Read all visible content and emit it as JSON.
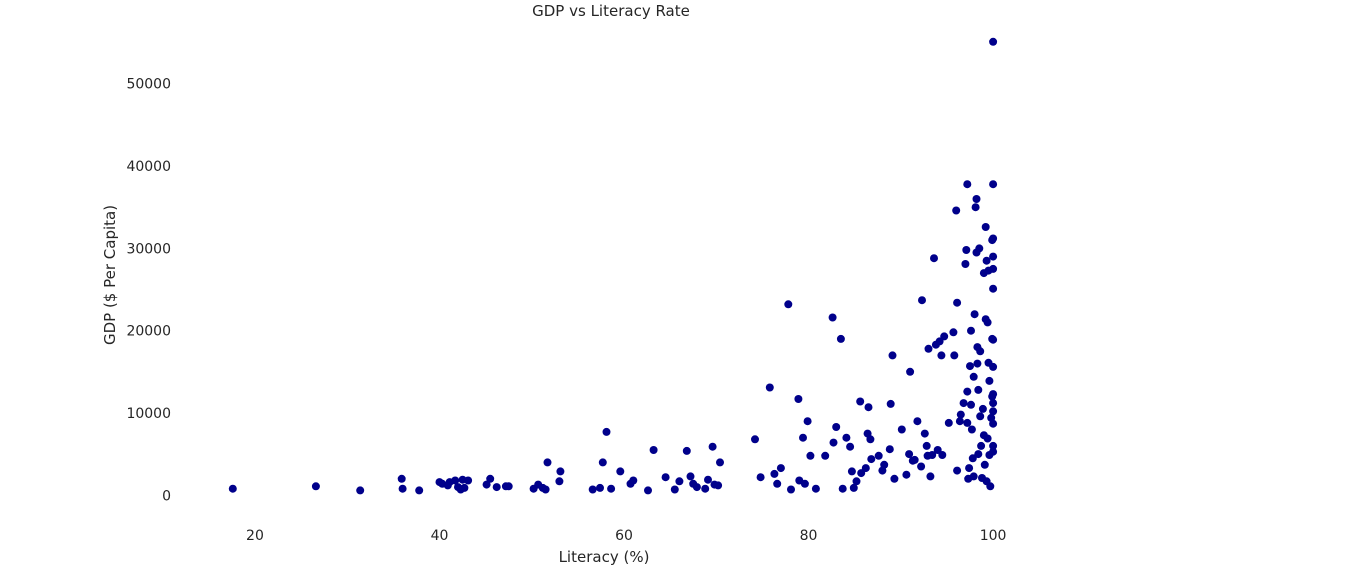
{
  "chart_data": {
    "type": "scatter",
    "title": "GDP vs Literacy Rate",
    "xlabel": "Literacy (%)",
    "ylabel": "GDP ($ Per Capita)",
    "xlim": [
      13.5,
      104
    ],
    "ylim": [
      -3000,
      57500
    ],
    "xticks": [
      20,
      40,
      60,
      80,
      100
    ],
    "yticks": [
      0,
      10000,
      20000,
      30000,
      40000,
      50000
    ],
    "grid": false,
    "marker_color": "#00008b",
    "points": [
      [
        17.6,
        800
      ],
      [
        26.6,
        1100
      ],
      [
        31.4,
        600
      ],
      [
        35.9,
        2000
      ],
      [
        36.0,
        800
      ],
      [
        37.8,
        600
      ],
      [
        40.0,
        1600
      ],
      [
        40.3,
        1400
      ],
      [
        40.9,
        1200
      ],
      [
        41.1,
        1600
      ],
      [
        41.7,
        1800
      ],
      [
        42.0,
        1000
      ],
      [
        42.3,
        700
      ],
      [
        42.5,
        1900
      ],
      [
        42.7,
        900
      ],
      [
        43.1,
        1800
      ],
      [
        45.1,
        1300
      ],
      [
        45.5,
        2000
      ],
      [
        46.2,
        1000
      ],
      [
        47.2,
        1100
      ],
      [
        47.5,
        1100
      ],
      [
        50.2,
        800
      ],
      [
        50.7,
        1300
      ],
      [
        51.2,
        900
      ],
      [
        51.5,
        700
      ],
      [
        51.7,
        4000
      ],
      [
        53.0,
        1700
      ],
      [
        53.1,
        2900
      ],
      [
        56.6,
        700
      ],
      [
        57.4,
        900
      ],
      [
        57.7,
        4000
      ],
      [
        58.1,
        7700
      ],
      [
        58.6,
        800
      ],
      [
        59.6,
        2900
      ],
      [
        60.7,
        1400
      ],
      [
        61.0,
        1800
      ],
      [
        62.6,
        600
      ],
      [
        63.2,
        5500
      ],
      [
        64.5,
        2200
      ],
      [
        65.5,
        700
      ],
      [
        66.0,
        1700
      ],
      [
        66.8,
        5400
      ],
      [
        67.2,
        2300
      ],
      [
        67.5,
        1400
      ],
      [
        67.9,
        1000
      ],
      [
        68.8,
        800
      ],
      [
        69.1,
        1900
      ],
      [
        69.6,
        5900
      ],
      [
        69.8,
        1300
      ],
      [
        70.2,
        1200
      ],
      [
        70.4,
        4000
      ],
      [
        74.2,
        6800
      ],
      [
        74.8,
        2200
      ],
      [
        75.8,
        13100
      ],
      [
        76.3,
        2600
      ],
      [
        76.6,
        1400
      ],
      [
        77.0,
        3300
      ],
      [
        77.8,
        23200
      ],
      [
        78.1,
        700
      ],
      [
        78.9,
        11700
      ],
      [
        79.0,
        1800
      ],
      [
        79.4,
        7000
      ],
      [
        79.6,
        1400
      ],
      [
        79.9,
        9000
      ],
      [
        80.2,
        4800
      ],
      [
        80.8,
        800
      ],
      [
        81.8,
        4800
      ],
      [
        82.6,
        21600
      ],
      [
        82.7,
        6400
      ],
      [
        83.0,
        8300
      ],
      [
        83.5,
        19000
      ],
      [
        83.7,
        800
      ],
      [
        84.1,
        7000
      ],
      [
        84.5,
        5900
      ],
      [
        84.7,
        2900
      ],
      [
        84.9,
        900
      ],
      [
        85.2,
        1700
      ],
      [
        85.6,
        11400
      ],
      [
        85.7,
        2700
      ],
      [
        86.2,
        3300
      ],
      [
        86.4,
        7500
      ],
      [
        86.5,
        10700
      ],
      [
        86.7,
        6800
      ],
      [
        86.8,
        4400
      ],
      [
        87.6,
        4800
      ],
      [
        88.0,
        3000
      ],
      [
        88.2,
        3700
      ],
      [
        88.8,
        5600
      ],
      [
        88.9,
        11100
      ],
      [
        89.1,
        17000
      ],
      [
        89.3,
        2000
      ],
      [
        90.1,
        8000
      ],
      [
        90.6,
        2500
      ],
      [
        90.9,
        5000
      ],
      [
        91.0,
        15000
      ],
      [
        91.3,
        4200
      ],
      [
        91.5,
        4300
      ],
      [
        91.8,
        9000
      ],
      [
        92.2,
        3500
      ],
      [
        92.3,
        23700
      ],
      [
        92.6,
        7500
      ],
      [
        92.8,
        6000
      ],
      [
        92.9,
        4800
      ],
      [
        93.0,
        17800
      ],
      [
        93.2,
        2300
      ],
      [
        93.4,
        4900
      ],
      [
        93.6,
        28800
      ],
      [
        93.8,
        18300
      ],
      [
        94.0,
        5500
      ],
      [
        94.2,
        18700
      ],
      [
        94.4,
        17000
      ],
      [
        94.5,
        4900
      ],
      [
        94.7,
        19300
      ],
      [
        95.2,
        8800
      ],
      [
        95.7,
        19800
      ],
      [
        95.8,
        17000
      ],
      [
        96.0,
        34600
      ],
      [
        96.1,
        23400
      ],
      [
        96.1,
        3000
      ],
      [
        96.4,
        9000
      ],
      [
        96.5,
        9800
      ],
      [
        96.8,
        11200
      ],
      [
        97.0,
        28100
      ],
      [
        97.1,
        29800
      ],
      [
        97.2,
        37800
      ],
      [
        97.2,
        12600
      ],
      [
        97.2,
        8800
      ],
      [
        97.3,
        2000
      ],
      [
        97.4,
        3300
      ],
      [
        97.5,
        15700
      ],
      [
        97.6,
        20000
      ],
      [
        97.6,
        11000
      ],
      [
        97.7,
        8000
      ],
      [
        97.8,
        4500
      ],
      [
        97.9,
        14400
      ],
      [
        97.9,
        2300
      ],
      [
        98.0,
        22000
      ],
      [
        98.1,
        35000
      ],
      [
        98.2,
        36000
      ],
      [
        98.2,
        29500
      ],
      [
        98.3,
        18000
      ],
      [
        98.3,
        16000
      ],
      [
        98.4,
        12800
      ],
      [
        98.4,
        5000
      ],
      [
        98.5,
        30000
      ],
      [
        98.6,
        17500
      ],
      [
        98.6,
        9600
      ],
      [
        98.7,
        6000
      ],
      [
        98.8,
        2100
      ],
      [
        98.9,
        10500
      ],
      [
        99.0,
        27000
      ],
      [
        99.0,
        7300
      ],
      [
        99.1,
        3700
      ],
      [
        99.2,
        32600
      ],
      [
        99.2,
        21400
      ],
      [
        99.3,
        28500
      ],
      [
        99.3,
        1700
      ],
      [
        99.4,
        21000
      ],
      [
        99.4,
        6900
      ],
      [
        99.5,
        27300
      ],
      [
        99.5,
        16100
      ],
      [
        99.6,
        13900
      ],
      [
        99.6,
        4900
      ],
      [
        99.7,
        1100
      ],
      [
        99.8,
        9400
      ],
      [
        99.9,
        31000
      ],
      [
        99.9,
        19000
      ],
      [
        99.9,
        12000
      ],
      [
        100.0,
        55100
      ],
      [
        100.0,
        37800
      ],
      [
        100.0,
        31200
      ],
      [
        100.0,
        29000
      ],
      [
        100.0,
        27500
      ],
      [
        100.0,
        25100
      ],
      [
        100.0,
        15600
      ],
      [
        100.0,
        11200
      ],
      [
        100.0,
        10200
      ],
      [
        100.0,
        8700
      ],
      [
        100.0,
        6000
      ],
      [
        100.0,
        5300
      ],
      [
        100.0,
        18900
      ],
      [
        100.0,
        12300
      ]
    ]
  }
}
